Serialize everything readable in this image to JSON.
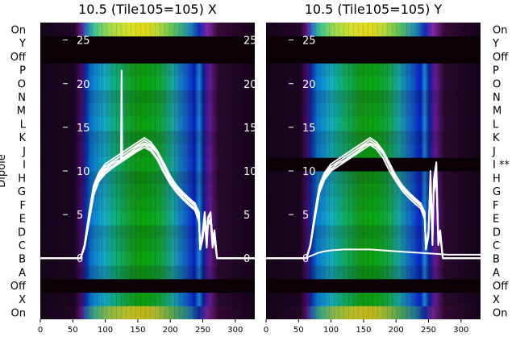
{
  "chart_data": [
    {
      "type": "heatmap",
      "title": "10.5 (Tile105=105) X",
      "ylabel": "Dipole",
      "xlim": [
        0,
        330
      ],
      "ylim": [
        -7,
        27
      ],
      "x_ticks": [
        0,
        50,
        100,
        150,
        200,
        250,
        300
      ],
      "y_ticks": [
        0,
        5,
        10,
        15,
        20,
        25
      ],
      "dipole_labels": [
        "On",
        "X",
        "Off",
        "A",
        "B",
        "C",
        "D",
        "E",
        "F",
        "G",
        "H",
        "I",
        "J",
        "K",
        "L",
        "M",
        "N",
        "O",
        "P",
        "Off",
        "Y",
        "On"
      ],
      "off_rows": [
        2,
        19,
        20
      ],
      "series": [
        {
          "x": [
            0,
            50,
            62,
            68,
            75,
            82,
            90,
            100,
            110,
            120,
            130,
            140,
            150,
            160,
            170,
            180,
            190,
            200,
            210,
            220,
            230,
            238,
            244,
            246,
            250,
            253,
            256,
            258,
            262,
            265,
            268,
            272,
            330
          ],
          "y": [
            0,
            0,
            0,
            1.5,
            5,
            8,
            9.5,
            10.5,
            11,
            11.5,
            12,
            12.5,
            13,
            13.5,
            13,
            12,
            10.5,
            9,
            8,
            7.2,
            6.5,
            6,
            5,
            1,
            3,
            5,
            2,
            4.5,
            5,
            2,
            3,
            0,
            0
          ]
        },
        {
          "x": [
            0,
            50,
            62,
            68,
            75,
            82,
            90,
            100,
            110,
            120,
            130,
            140,
            150,
            160,
            170,
            180,
            190,
            200,
            210,
            220,
            230,
            238,
            244,
            246,
            250,
            253,
            256,
            258,
            262,
            265,
            268,
            272,
            330
          ],
          "y": [
            0,
            0,
            0,
            1.3,
            4.5,
            7.5,
            9,
            10,
            10.5,
            11,
            11.5,
            12,
            12.5,
            13,
            12.5,
            11.5,
            10,
            8.8,
            7.7,
            6.9,
            6.2,
            5.7,
            4.5,
            1,
            2.5,
            4.5,
            1.5,
            4,
            4.5,
            1.5,
            2.5,
            0,
            0
          ]
        },
        {
          "x": [
            0,
            50,
            62,
            68,
            75,
            82,
            90,
            100,
            110,
            120,
            124,
            125,
            126,
            130,
            140,
            150,
            160,
            170,
            180,
            190,
            200,
            210,
            220,
            230,
            238,
            244,
            246,
            250,
            253,
            256,
            258,
            262,
            265,
            268,
            272,
            330
          ],
          "y": [
            0,
            0,
            0,
            1.4,
            4.8,
            7.8,
            9.2,
            10.2,
            10.8,
            11.2,
            11.2,
            21.5,
            11.3,
            11.7,
            12.2,
            12.8,
            13.2,
            12.8,
            12,
            10.8,
            9.4,
            8.3,
            7.5,
            6.8,
            6.3,
            5.2,
            1,
            3,
            5,
            2,
            4.5,
            5,
            2,
            3,
            0,
            0
          ]
        },
        {
          "x": [
            0,
            50,
            62,
            68,
            75,
            82,
            90,
            100,
            110,
            120,
            130,
            140,
            150,
            160,
            170,
            180,
            190,
            200,
            210,
            220,
            230,
            238,
            244,
            246,
            250,
            253,
            256,
            258,
            262,
            265,
            268,
            272,
            330
          ],
          "y": [
            0,
            0,
            0,
            1.2,
            4.2,
            7.2,
            8.8,
            9.7,
            10.3,
            10.8,
            11.3,
            11.8,
            12.3,
            12.7,
            12.3,
            11.3,
            9.8,
            8.5,
            7.5,
            6.7,
            6,
            5.5,
            4.2,
            1,
            2.2,
            4.2,
            1.2,
            3.8,
            4.2,
            1.2,
            2.2,
            0,
            0
          ]
        },
        {
          "x": [
            0,
            50,
            62,
            68,
            75,
            82,
            90,
            100,
            110,
            120,
            130,
            140,
            150,
            160,
            170,
            180,
            190,
            200,
            210,
            220,
            230,
            238,
            244,
            246,
            250,
            253,
            256,
            258,
            262,
            265,
            268,
            272,
            330
          ],
          "y": [
            0,
            0,
            0,
            1.5,
            5.2,
            8.3,
            9.8,
            10.8,
            11.3,
            11.8,
            12.3,
            12.8,
            13.3,
            13.8,
            13.3,
            12.3,
            10.9,
            9.4,
            8.2,
            7.4,
            6.7,
            6.2,
            5.3,
            1,
            3.2,
            5.3,
            2.2,
            4.7,
            5.3,
            2.2,
            3.2,
            0,
            0
          ]
        }
      ]
    },
    {
      "type": "heatmap",
      "title": "10.5 (Tile105=105) Y",
      "xlim": [
        0,
        330
      ],
      "ylim": [
        -7,
        27
      ],
      "x_ticks": [
        0,
        50,
        100,
        150,
        200,
        250,
        300
      ],
      "y_ticks": [
        0,
        5,
        10,
        15,
        20,
        25
      ],
      "dipole_labels": [
        "On",
        "X",
        "Off",
        "A",
        "B",
        "C",
        "D",
        "E",
        "F",
        "G",
        "H",
        "I **",
        "J",
        "K",
        "L",
        "M",
        "N",
        "O",
        "P",
        "Off",
        "Y",
        "On"
      ],
      "off_rows": [
        2,
        11,
        19,
        20
      ],
      "series": [
        {
          "x": [
            0,
            50,
            62,
            68,
            75,
            82,
            90,
            100,
            110,
            120,
            130,
            140,
            150,
            160,
            170,
            180,
            190,
            200,
            210,
            220,
            230,
            238,
            244,
            246,
            250,
            253,
            256,
            258,
            262,
            265,
            268,
            272,
            330
          ],
          "y": [
            0,
            0,
            0,
            1.5,
            5,
            8,
            9.5,
            10.5,
            11,
            11.5,
            12,
            12.5,
            13,
            13.5,
            13,
            12,
            10.5,
            9,
            8,
            7.2,
            6.5,
            6,
            5,
            1,
            3,
            9,
            2,
            8,
            9.5,
            2,
            3,
            0,
            0
          ]
        },
        {
          "x": [
            0,
            50,
            62,
            68,
            75,
            82,
            90,
            100,
            110,
            120,
            130,
            140,
            150,
            160,
            170,
            180,
            190,
            200,
            210,
            220,
            230,
            238,
            244,
            246,
            250,
            253,
            256,
            258,
            262,
            265,
            268,
            272,
            330
          ],
          "y": [
            0,
            0,
            0,
            1.3,
            4.5,
            7.5,
            9,
            10,
            10.5,
            11,
            11.5,
            12,
            12.5,
            13,
            12.5,
            11.5,
            10,
            8.8,
            7.7,
            6.9,
            6.2,
            5.7,
            4.5,
            1,
            2.5,
            8.5,
            1.5,
            7.5,
            9,
            1.5,
            2.5,
            0,
            0
          ]
        },
        {
          "x": [
            0,
            50,
            62,
            68,
            75,
            82,
            90,
            100,
            110,
            120,
            130,
            140,
            150,
            160,
            170,
            180,
            190,
            200,
            210,
            220,
            230,
            238,
            244,
            246,
            250,
            253,
            256,
            258,
            262,
            265,
            268,
            272,
            330
          ],
          "y": [
            0,
            0,
            0,
            1.4,
            4.8,
            7.8,
            9.2,
            10.2,
            10.8,
            11.2,
            11.7,
            12.2,
            12.8,
            13.2,
            12.8,
            12,
            10.8,
            9.4,
            8.3,
            7.5,
            6.8,
            6.3,
            5.2,
            1,
            3,
            9.5,
            2,
            8.5,
            10,
            2,
            3,
            0,
            0
          ]
        },
        {
          "x": [
            0,
            50,
            62,
            68,
            75,
            82,
            90,
            100,
            110,
            120,
            130,
            140,
            150,
            160,
            170,
            180,
            190,
            200,
            210,
            220,
            230,
            238,
            244,
            246,
            250,
            253,
            256,
            258,
            262,
            265,
            268,
            272,
            330
          ],
          "y": [
            0,
            0,
            0,
            1.5,
            5.2,
            8.3,
            9.8,
            10.8,
            11.3,
            11.8,
            12.3,
            12.8,
            13.3,
            13.8,
            13.3,
            12.3,
            10.9,
            9.4,
            8.2,
            7.4,
            6.7,
            6.2,
            5.3,
            1,
            3.2,
            10,
            2.2,
            9,
            11,
            2.2,
            3.2,
            0,
            0
          ]
        },
        {
          "x": [
            0,
            50,
            60,
            70,
            80,
            90,
            100,
            120,
            140,
            160,
            180,
            200,
            220,
            240,
            260,
            280,
            330
          ],
          "y": [
            0,
            0,
            0,
            0.3,
            0.6,
            0.8,
            0.9,
            1,
            1,
            1,
            0.9,
            0.8,
            0.7,
            0.6,
            0.5,
            0.4,
            0.4
          ]
        }
      ]
    }
  ],
  "colors": {
    "line": "#ffffff",
    "off_band": "#0a0006",
    "background_dark": "#1a0516"
  }
}
